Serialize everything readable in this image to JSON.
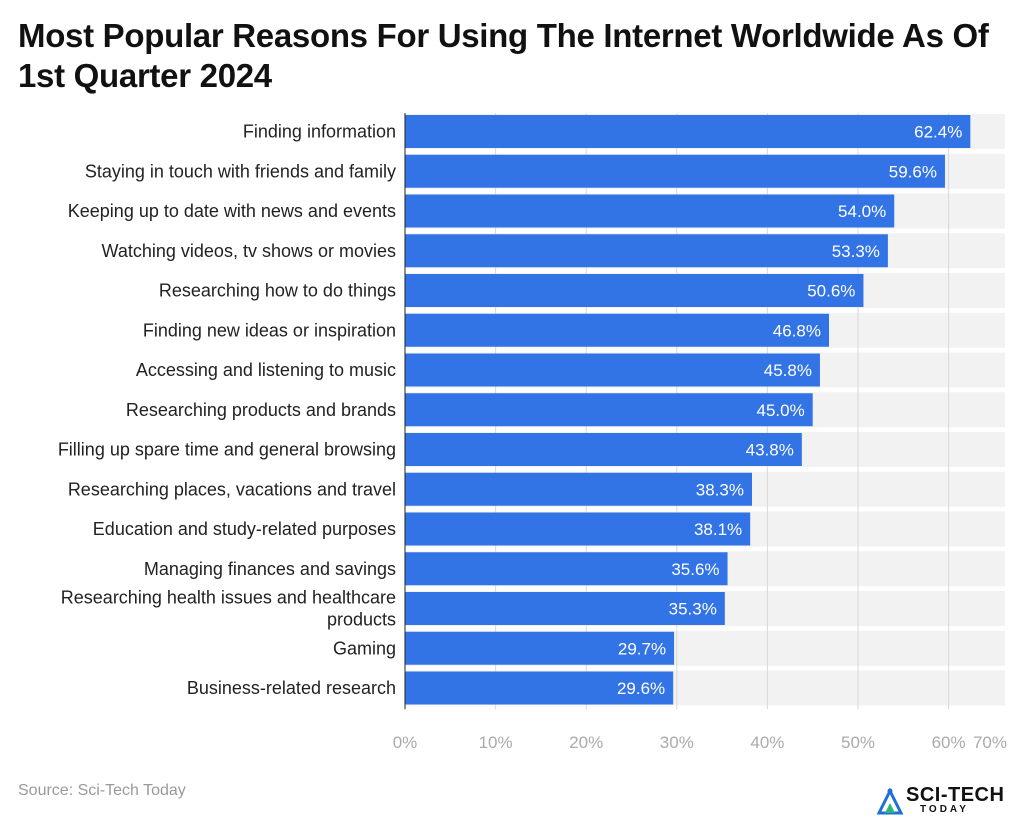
{
  "title": "Most Popular Reasons For Using The Internet Worldwide As Of 1st Quarter 2024",
  "source": "Source: Sci-Tech Today",
  "brand": {
    "name": "SCI-TECH",
    "sub": "TODAY",
    "logo_icon": "sci-tech-logo-icon"
  },
  "colors": {
    "bar": "#3273e6",
    "band": "#f2f2f2",
    "grid": "#d8d8d8",
    "axis": "#222222"
  },
  "chart_data": {
    "type": "bar",
    "orientation": "horizontal",
    "title": "Most Popular Reasons For Using The Internet Worldwide As Of 1st Quarter 2024",
    "categories": [
      "Finding information",
      "Staying in touch with friends and family",
      "Keeping up to date with news and events",
      "Watching videos, tv shows or movies",
      "Researching how to do things",
      "Finding new ideas or inspiration",
      "Accessing and listening to music",
      "Researching products and brands",
      "Filling up spare time and general browsing",
      "Researching places, vacations and travel",
      "Education and study-related purposes",
      "Managing finances and savings",
      "Researching health issues and healthcare products",
      "Gaming",
      "Business-related research"
    ],
    "values": [
      62.4,
      59.6,
      54.0,
      53.3,
      50.6,
      46.8,
      45.8,
      45.0,
      43.8,
      38.3,
      38.1,
      35.6,
      35.3,
      29.7,
      29.6
    ],
    "value_labels": [
      "62.4%",
      "59.6%",
      "54.0%",
      "53.3%",
      "50.6%",
      "46.8%",
      "45.8%",
      "45.0%",
      "43.8%",
      "38.3%",
      "38.1%",
      "35.6%",
      "35.3%",
      "29.7%",
      "29.6%"
    ],
    "xlim": [
      0,
      70
    ],
    "ticks": [
      0,
      10,
      20,
      30,
      40,
      50,
      60,
      70
    ],
    "tick_labels": [
      "0%",
      "10%",
      "20%",
      "30%",
      "40%",
      "50%",
      "60%",
      "70%"
    ],
    "grid": true,
    "legend": "none"
  }
}
